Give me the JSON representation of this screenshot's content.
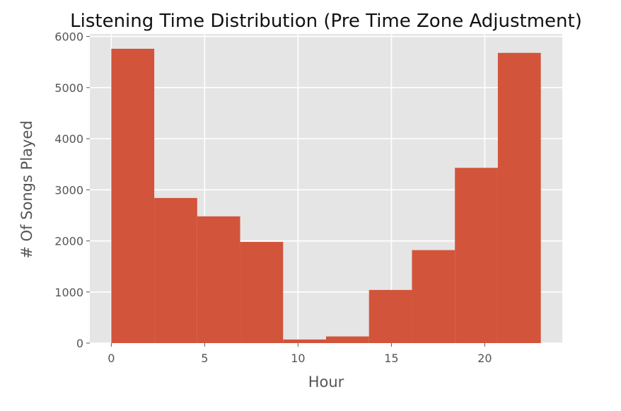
{
  "chart_data": {
    "type": "bar",
    "title": "Listening Time Distribution (Pre Time Zone Adjustment)",
    "xlabel": "Hour",
    "ylabel": "# Of Songs Played",
    "xlim": [
      -1.15,
      24.15
    ],
    "ylim": [
      0,
      6050
    ],
    "xticks": [
      0,
      5,
      10,
      15,
      20
    ],
    "yticks": [
      0,
      1000,
      2000,
      3000,
      4000,
      5000,
      6000
    ],
    "grid": true,
    "legend": "none",
    "bins": [
      {
        "x0": 0.0,
        "x1": 2.3,
        "value": 5760
      },
      {
        "x0": 2.3,
        "x1": 4.6,
        "value": 2840
      },
      {
        "x0": 4.6,
        "x1": 6.9,
        "value": 2480
      },
      {
        "x0": 6.9,
        "x1": 9.2,
        "value": 1980
      },
      {
        "x0": 9.2,
        "x1": 11.5,
        "value": 70
      },
      {
        "x0": 11.5,
        "x1": 13.8,
        "value": 130
      },
      {
        "x0": 13.8,
        "x1": 16.1,
        "value": 1040
      },
      {
        "x0": 16.1,
        "x1": 18.4,
        "value": 1820
      },
      {
        "x0": 18.4,
        "x1": 20.7,
        "value": 3430
      },
      {
        "x0": 20.7,
        "x1": 23.0,
        "value": 5680
      }
    ],
    "colors": {
      "bar": "#d2543a",
      "plot_background": "#e5e5e5",
      "grid": "#ffffff",
      "tick_text": "#555555",
      "label_text": "#555555",
      "title_text": "#111111"
    }
  }
}
